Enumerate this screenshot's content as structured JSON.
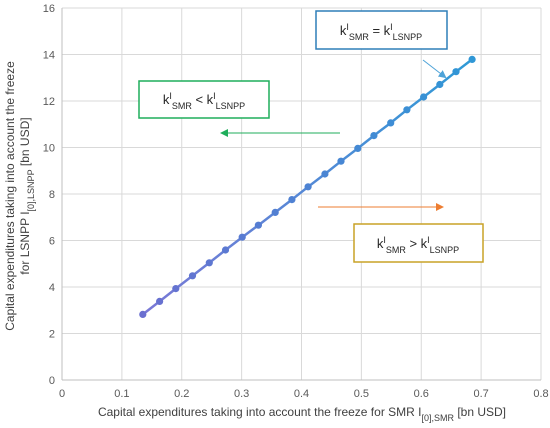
{
  "chart_data": {
    "type": "line",
    "xlabel": "Capital expenditures taking into account the freeze for SMR I",
    "xlabel_sub": "[0],SMR",
    "xlabel_unit": " [bn USD]",
    "ylabel_line1": "Capital expenditures taking into account the freeze",
    "ylabel_line2_prefix": "for LSNPP I",
    "ylabel_line2_sub": "[0],LSNPP",
    "ylabel_line2_unit": " [bn USD]",
    "xlim": [
      0,
      0.8
    ],
    "ylim": [
      0,
      16
    ],
    "x_ticks": [
      0,
      0.1,
      0.2,
      0.3,
      0.4,
      0.5,
      0.6,
      0.7,
      0.8
    ],
    "x_tick_labels": [
      "0",
      "0.1",
      "0.2",
      "0.3",
      "0.4",
      "0.5",
      "0.6",
      "0.7",
      "0.8"
    ],
    "y_ticks": [
      0,
      2,
      4,
      6,
      8,
      10,
      12,
      14,
      16
    ],
    "y_tick_labels": [
      "0",
      "2",
      "4",
      "6",
      "8",
      "10",
      "12",
      "14",
      "16"
    ],
    "grid": true,
    "series": [
      {
        "x": [
          0.135,
          0.163,
          0.19,
          0.218,
          0.246,
          0.273,
          0.301,
          0.328,
          0.356,
          0.384,
          0.411,
          0.439,
          0.466,
          0.494,
          0.521,
          0.549,
          0.576,
          0.604,
          0.631,
          0.658,
          0.685
        ],
        "y": [
          2.82,
          3.38,
          3.93,
          4.48,
          5.04,
          5.59,
          6.14,
          6.66,
          7.21,
          7.76,
          8.31,
          8.86,
          9.41,
          9.96,
          10.51,
          11.06,
          11.62,
          12.17,
          12.71,
          13.26,
          13.79
        ],
        "color": "#4ea3d8"
      }
    ],
    "annotations": {
      "equal": {
        "k": "k",
        "sup": "I",
        "sub1": "SMR",
        "op": " = ",
        "sub2": "LSNPP",
        "border": "#2e7fb8",
        "arrow": "#4ea3d8"
      },
      "less": {
        "k": "k",
        "sup": "I",
        "sub1": "SMR",
        "op": " < ",
        "sub2": "LSNPP",
        "border": "#1fae5b",
        "arrow": "#1fae5b"
      },
      "greater": {
        "k": "k",
        "sup": "I",
        "sub1": "SMR",
        "op": " > ",
        "sub2": "LSNPP",
        "border": "#c9a227",
        "arrow": "#ed7d31"
      }
    },
    "marker_color_start": "#6a6fd0",
    "marker_color_end": "#2f97d6"
  }
}
